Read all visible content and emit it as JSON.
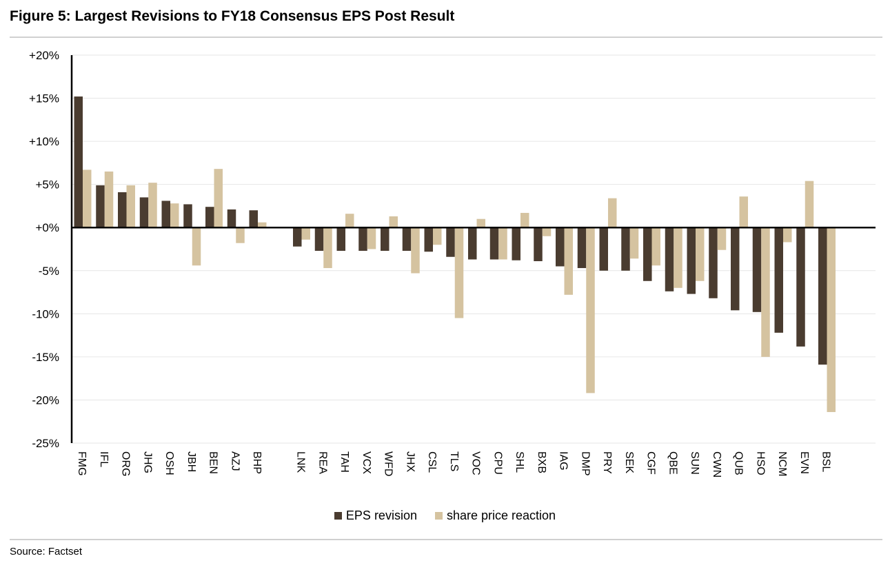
{
  "title": "Figure 5: Largest Revisions to FY18 Consensus EPS Post Result",
  "source": "Source: Factset",
  "colors": {
    "eps": "#4a3c30",
    "share": "#d5c3a0",
    "grid": "#e6e6e6",
    "axis": "#000000"
  },
  "chart_data": {
    "type": "bar",
    "title": "Largest Revisions to FY18 Consensus EPS Post Result",
    "xlabel": "",
    "ylabel": "",
    "ylim": [
      -25,
      20
    ],
    "yticks": [
      20,
      15,
      10,
      5,
      0,
      -5,
      -10,
      -15,
      -20,
      -25
    ],
    "ytick_labels": [
      "+20%",
      "+15%",
      "+10%",
      "+5%",
      "+0%",
      "-5%",
      "-10%",
      "-15%",
      "-20%",
      "-25%"
    ],
    "grid": true,
    "legend_position": "bottom-center",
    "categories": [
      "FMG",
      "IFL",
      "ORG",
      "JHG",
      "OSH",
      "JBH",
      "BEN",
      "AZJ",
      "BHP",
      "",
      "LNK",
      "REA",
      "TAH",
      "VCX",
      "WFD",
      "JHX",
      "CSL",
      "TLS",
      "VOC",
      "CPU",
      "SHL",
      "BXB",
      "IAG",
      "DMP",
      "PRY",
      "SEK",
      "CGF",
      "QBE",
      "SUN",
      "CWN",
      "QUB",
      "HSO",
      "NCM",
      "EVN",
      "BSL"
    ],
    "series": [
      {
        "name": "EPS revision",
        "values": [
          15.2,
          4.9,
          4.1,
          3.5,
          3.1,
          2.7,
          2.4,
          2.1,
          2.0,
          null,
          -2.2,
          -2.7,
          -2.7,
          -2.7,
          -2.7,
          -2.7,
          -2.8,
          -3.4,
          -3.7,
          -3.7,
          -3.8,
          -3.9,
          -4.5,
          -4.7,
          -5.0,
          -5.0,
          -6.2,
          -7.4,
          -7.7,
          -8.2,
          -9.6,
          -9.8,
          -12.2,
          -13.8,
          -15.9
        ]
      },
      {
        "name": "share price reaction",
        "values": [
          6.7,
          6.5,
          4.9,
          5.2,
          2.8,
          -4.4,
          6.8,
          -1.8,
          0.6,
          null,
          -1.4,
          -4.7,
          1.6,
          -2.5,
          1.3,
          -5.3,
          -2.0,
          -10.5,
          1.0,
          -3.7,
          1.7,
          -1.0,
          -7.8,
          -19.2,
          3.4,
          -3.6,
          -4.4,
          -7.0,
          -6.2,
          -2.6,
          3.6,
          -15.0,
          -1.7,
          5.4,
          -21.4
        ]
      }
    ]
  }
}
